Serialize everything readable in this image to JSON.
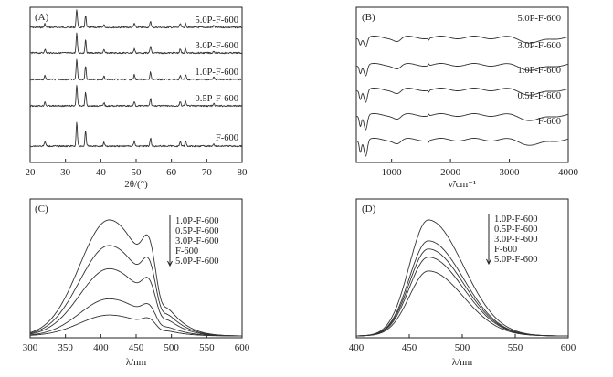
{
  "chart_data": [
    {
      "panel": "(A)",
      "type": "line",
      "xlabel": "2θ/(°)",
      "ylabel": "",
      "xlim": [
        20,
        80
      ],
      "xticks": [
        20,
        30,
        40,
        50,
        60,
        70,
        80
      ],
      "peaks_2theta": [
        24.2,
        33.2,
        35.7,
        40.9,
        49.5,
        54.1,
        62.5,
        64.0,
        72.0
      ],
      "peak_heights": [
        0.2,
        1.0,
        0.65,
        0.15,
        0.22,
        0.35,
        0.2,
        0.22,
        0.1
      ],
      "series": [
        {
          "name": "5.0P-F-600",
          "scale": 0.5
        },
        {
          "name": "3.0P-F-600",
          "scale": 0.55
        },
        {
          "name": "1.0P-F-600",
          "scale": 0.6
        },
        {
          "name": "0.5P-F-600",
          "scale": 0.62
        },
        {
          "name": "F-600",
          "scale": 0.7
        }
      ]
    },
    {
      "panel": "(B)",
      "type": "line",
      "xlabel": "ν̃/cm⁻¹",
      "ylabel": "",
      "xlim": [
        400,
        4000
      ],
      "xticks": [
        1000,
        2000,
        3000,
        4000
      ],
      "series": [
        {
          "name": "5.0P-F-600"
        },
        {
          "name": "3.0P-F-600"
        },
        {
          "name": "1.0P-F-600"
        },
        {
          "name": "0.5P-F-600"
        },
        {
          "name": "F-600"
        }
      ]
    },
    {
      "panel": "(C)",
      "type": "line",
      "xlabel": "λ/nm",
      "ylabel": "",
      "xlim": [
        300,
        600
      ],
      "xticks": [
        300,
        350,
        400,
        450,
        500,
        550,
        600
      ],
      "legend_order": [
        "1.0P-F-600",
        "0.5P-F-600",
        "3.0P-F-600",
        "F-600",
        "5.0P-F-600"
      ],
      "series": [
        {
          "name": "1.0P-F-600",
          "peak_nm": 412,
          "rel_intensity": 1.0
        },
        {
          "name": "0.5P-F-600",
          "peak_nm": 412,
          "rel_intensity": 0.78
        },
        {
          "name": "3.0P-F-600",
          "peak_nm": 412,
          "rel_intensity": 0.58
        },
        {
          "name": "F-600",
          "peak_nm": 412,
          "rel_intensity": 0.32
        },
        {
          "name": "5.0P-F-600",
          "peak_nm": 412,
          "rel_intensity": 0.18
        }
      ]
    },
    {
      "panel": "(D)",
      "type": "line",
      "xlabel": "λ/nm",
      "ylabel": "",
      "xlim": [
        400,
        600
      ],
      "xticks": [
        400,
        450,
        500,
        550,
        600
      ],
      "legend_order": [
        "1.0P-F-600",
        "0.5P-F-600",
        "3.0P-F-600",
        "F-600",
        "5.0P-F-600"
      ],
      "series": [
        {
          "name": "1.0P-F-600",
          "peak_nm": 468,
          "rel_intensity": 1.0
        },
        {
          "name": "0.5P-F-600",
          "peak_nm": 468,
          "rel_intensity": 0.82
        },
        {
          "name": "3.0P-F-600",
          "peak_nm": 468,
          "rel_intensity": 0.75
        },
        {
          "name": "F-600",
          "peak_nm": 468,
          "rel_intensity": 0.68
        },
        {
          "name": "5.0P-F-600",
          "peak_nm": 468,
          "rel_intensity": 0.56
        }
      ]
    }
  ]
}
